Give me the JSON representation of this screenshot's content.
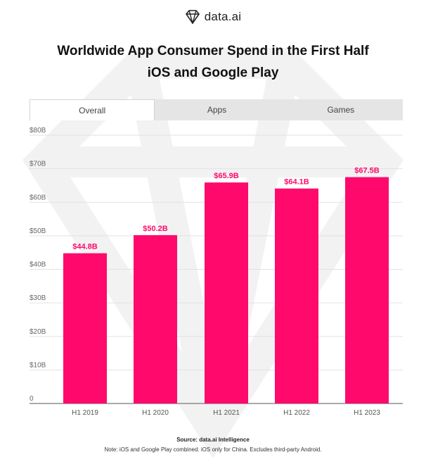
{
  "brand": {
    "name": "data.ai",
    "icon": "diamond-logo-icon"
  },
  "title_line1": "Worldwide App Consumer Spend in the First Half",
  "title_line2": "iOS and Google Play",
  "tabs": [
    {
      "label": "Overall",
      "active": true
    },
    {
      "label": "Apps",
      "active": false
    },
    {
      "label": "Games",
      "active": false
    }
  ],
  "colors": {
    "bar": "#ff0a6c",
    "label": "#ff0a6c",
    "grid": "#e2e2e2",
    "watermark": "#f1f1f1"
  },
  "chart_data": {
    "type": "bar",
    "categories": [
      "H1 2019",
      "H1 2020",
      "H1 2021",
      "H1 2022",
      "H1 2023"
    ],
    "values": [
      44.8,
      50.2,
      65.9,
      64.1,
      67.5
    ],
    "data_labels": [
      "$44.8B",
      "$50.2B",
      "$65.9B",
      "$64.1B",
      "$67.5B"
    ],
    "y_ticks": [
      "0",
      "$10B",
      "$20B",
      "$30B",
      "$40B",
      "$50B",
      "$60B",
      "$70B",
      "$80B"
    ],
    "ylim": [
      0,
      80
    ],
    "grid": true,
    "title": "Worldwide App Consumer Spend in the First Half",
    "subtitle": "iOS and Google Play"
  },
  "footer": {
    "source": "Source: data.ai Intelligence",
    "note": "Note: iOS and Google Play combined. iOS only for China. Excludes third-party Android."
  }
}
